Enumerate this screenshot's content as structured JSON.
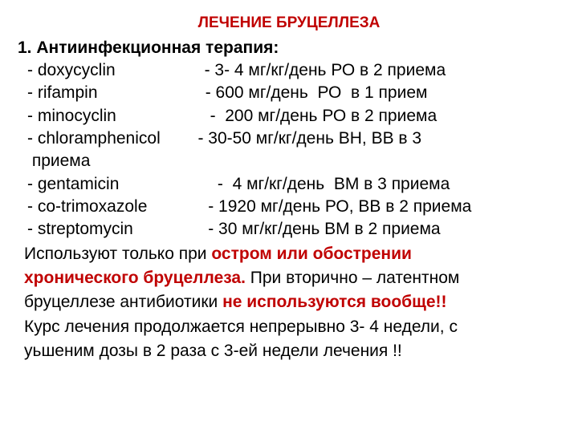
{
  "title": "ЛЕЧЕНИЕ БРУЦЕЛЛЕЗА",
  "section_header": "1. Антиинфекционная терапия:",
  "drugs": [
    {
      "name": "- doxycyclin",
      "gap": "                   ",
      "dose": "- 3- 4 мг/кг/день РО в 2 приема"
    },
    {
      "name": "- rifampin",
      "gap": "                       ",
      "dose": "- 600 мг/день  РО  в 1 прием"
    },
    {
      "name": "- minocyclin",
      "gap": "                    ",
      "dose": "-  200 мг/день РО в 2 приема"
    },
    {
      "name": "- chloramphenicol",
      "gap": "        ",
      "dose": "- 30-50 мг/кг/день ВН, ВВ в 3"
    },
    {
      "name": " приема",
      "gap": "",
      "dose": ""
    },
    {
      "name": "- gentamicin",
      "gap": "                     ",
      "dose": "-  4 мг/кг/день  ВМ в 3 приема"
    },
    {
      "name": "- co-trimoxazole",
      "gap": "             ",
      "dose": "- 1920 мг/день РО, ВВ в 2 приема"
    },
    {
      "name": "- streptomycin",
      "gap": "                ",
      "dose": "- 30 мг/кг/день ВМ в 2 приема"
    }
  ],
  "footer": {
    "line1_black": "Используют только при ",
    "line1_red": "остром или обострении",
    "line2_red1": "хронического бруцеллеза.",
    "line2_black": " При  вторично – латентном",
    "line3_black1": "бруцеллезе антибиотики ",
    "line3_red": "не используются вообще!!",
    "line4": "Курс лечения продолжается непрерывно 3- 4 недели, с",
    "line5": "уьшеним  дозы в 2 раза с 3-ей недели лечения !!"
  },
  "colors": {
    "title_color": "#c00000",
    "text_color": "#000000",
    "background": "#ffffff"
  },
  "typography": {
    "title_fontsize": 19,
    "body_fontsize": 21
  }
}
